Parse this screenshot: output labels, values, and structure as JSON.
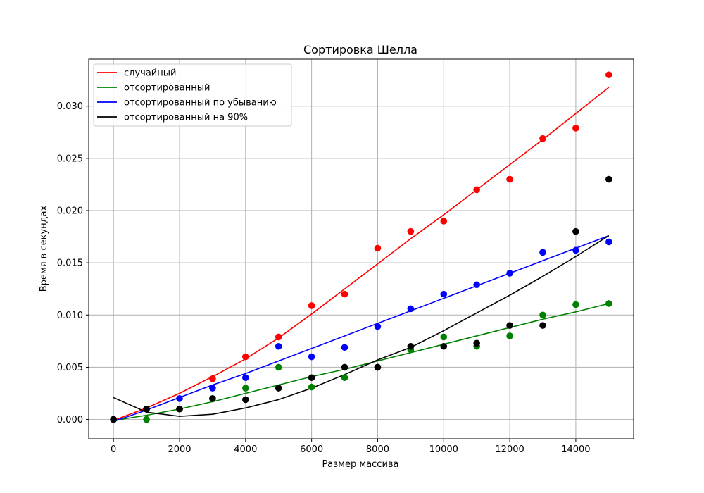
{
  "chart_data": {
    "type": "scatter",
    "title": "Сортировка Шелла",
    "xlabel": "Размер массива",
    "ylabel": "Время в секундах",
    "xlim": [
      -750,
      15750
    ],
    "ylim": [
      -0.00185,
      0.0345
    ],
    "xticks": [
      0,
      2000,
      4000,
      6000,
      8000,
      10000,
      12000,
      14000
    ],
    "xtick_labels": [
      "0",
      "2000",
      "4000",
      "6000",
      "8000",
      "10000",
      "12000",
      "14000"
    ],
    "yticks": [
      0.0,
      0.005,
      0.01,
      0.015,
      0.02,
      0.025,
      0.03
    ],
    "ytick_labels": [
      "0.000",
      "0.005",
      "0.010",
      "0.015",
      "0.020",
      "0.025",
      "0.030"
    ],
    "grid": true,
    "legend_position": "top-left",
    "x": [
      0,
      1000,
      2000,
      3000,
      4000,
      5000,
      6000,
      7000,
      8000,
      9000,
      10000,
      11000,
      12000,
      13000,
      14000,
      15000
    ],
    "series": [
      {
        "name": "случайный",
        "color": "#ff0000",
        "points": [
          0.0,
          0.001,
          0.001,
          0.0039,
          0.006,
          0.0079,
          0.0109,
          0.012,
          0.0164,
          0.018,
          0.019,
          0.022,
          0.023,
          0.0269,
          0.0279,
          0.033
        ],
        "fit": [
          -0.0001,
          0.0011,
          0.0025,
          0.0041,
          0.0058,
          0.0078,
          0.0101,
          0.0125,
          0.0149,
          0.0173,
          0.0196,
          0.022,
          0.0244,
          0.0268,
          0.0293,
          0.0318
        ]
      },
      {
        "name": "отсортированный",
        "color": "#008000",
        "points": [
          0.0,
          0.0,
          0.001,
          0.002,
          0.003,
          0.005,
          0.0031,
          0.004,
          0.005,
          0.0067,
          0.0079,
          0.007,
          0.008,
          0.01,
          0.011,
          0.0111
        ],
        "fit": [
          -0.0001,
          0.0004,
          0.001,
          0.0017,
          0.0025,
          0.0033,
          0.0041,
          0.0048,
          0.0056,
          0.0064,
          0.0072,
          0.008,
          0.0088,
          0.0096,
          0.0103,
          0.0111
        ]
      },
      {
        "name": "отсортированный по убыванию",
        "color": "#0000ff",
        "points": [
          0.0,
          0.001,
          0.002,
          0.003,
          0.004,
          0.007,
          0.006,
          0.0069,
          0.0089,
          0.0106,
          0.012,
          0.0129,
          0.014,
          0.016,
          0.0162,
          0.017
        ],
        "fit": [
          -0.0002,
          0.0009,
          0.0021,
          0.0033,
          0.0044,
          0.0056,
          0.0068,
          0.008,
          0.0092,
          0.0104,
          0.0116,
          0.0128,
          0.014,
          0.0152,
          0.0164,
          0.0176
        ]
      },
      {
        "name": "отсортированный на 90%",
        "color": "#000000",
        "points": [
          0.0,
          0.001,
          0.001,
          0.002,
          0.0019,
          0.003,
          0.004,
          0.005,
          0.005,
          0.007,
          0.007,
          0.0073,
          0.009,
          0.009,
          0.018,
          0.023
        ],
        "fit": [
          0.0021,
          0.0007,
          0.0003,
          0.0005,
          0.0011,
          0.0019,
          0.003,
          0.0043,
          0.0057,
          0.0069,
          0.0085,
          0.0102,
          0.0119,
          0.0137,
          0.0156,
          0.0176
        ]
      }
    ]
  }
}
